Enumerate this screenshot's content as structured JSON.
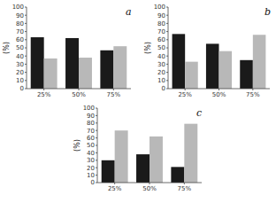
{
  "chart_data": [
    {
      "type": "bar",
      "title": "a",
      "ylabel": "(%)",
      "categories": [
        "25%",
        "50%",
        "75%"
      ],
      "series": [
        {
          "color": "#1a1a1a",
          "values": [
            63,
            62,
            47
          ]
        },
        {
          "color": "#b8b8b8",
          "values": [
            37,
            38,
            52
          ]
        }
      ],
      "ylim": [
        0,
        100
      ],
      "yticks": [
        0,
        10,
        20,
        30,
        40,
        50,
        60,
        70,
        80,
        90,
        100
      ]
    },
    {
      "type": "bar",
      "title": "b",
      "ylabel": "(%)",
      "categories": [
        "25%",
        "50%",
        "75%"
      ],
      "series": [
        {
          "color": "#1a1a1a",
          "values": [
            67,
            55,
            35
          ]
        },
        {
          "color": "#b8b8b8",
          "values": [
            33,
            46,
            66
          ]
        }
      ],
      "ylim": [
        0,
        100
      ],
      "yticks": [
        0,
        10,
        20,
        30,
        40,
        50,
        60,
        70,
        80,
        90,
        100
      ]
    },
    {
      "type": "bar",
      "title": "c",
      "ylabel": "(%)",
      "categories": [
        "25%",
        "50%",
        "75%"
      ],
      "series": [
        {
          "color": "#1a1a1a",
          "values": [
            30,
            38,
            21
          ]
        },
        {
          "color": "#b8b8b8",
          "values": [
            70,
            62,
            79
          ]
        }
      ],
      "ylim": [
        0,
        100
      ],
      "yticks": [
        0,
        10,
        20,
        30,
        40,
        50,
        60,
        70,
        80,
        90,
        100
      ]
    }
  ]
}
